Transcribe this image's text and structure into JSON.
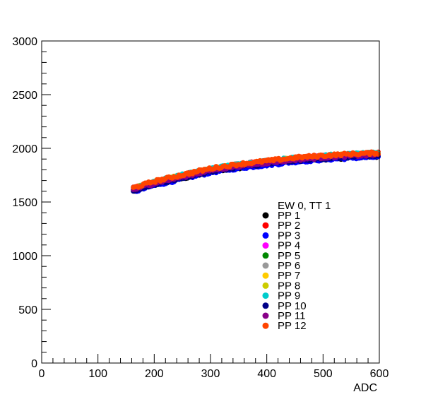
{
  "chart_data": {
    "type": "scatter",
    "title": "",
    "xlabel": "ADC",
    "ylabel": "",
    "xlim": [
      0,
      600
    ],
    "ylim": [
      0,
      3000
    ],
    "x_ticks": [
      0,
      100,
      200,
      300,
      400,
      500,
      600
    ],
    "y_ticks": [
      0,
      500,
      1000,
      1500,
      2000,
      2500,
      3000
    ],
    "grid": false,
    "legend_position": "bottom-right",
    "legend_header": "EW 0, TT 1",
    "series": [
      {
        "name": "PP 1",
        "color": "#000000",
        "offset": -20
      },
      {
        "name": "PP 2",
        "color": "#ff0000",
        "offset": 8
      },
      {
        "name": "PP 3",
        "color": "#0000ff",
        "offset": -25
      },
      {
        "name": "PP 4",
        "color": "#ff00ff",
        "offset": 5
      },
      {
        "name": "PP 5",
        "color": "#008800",
        "offset": 0
      },
      {
        "name": "PP 6",
        "color": "#999999",
        "offset": 2
      },
      {
        "name": "PP 7",
        "color": "#ffcc00",
        "offset": 4
      },
      {
        "name": "PP 8",
        "color": "#cccc00",
        "offset": 6
      },
      {
        "name": "PP 9",
        "color": "#00cccc",
        "offset": 10
      },
      {
        "name": "PP 10",
        "color": "#000088",
        "offset": -15
      },
      {
        "name": "PP 11",
        "color": "#880088",
        "offset": -5
      },
      {
        "name": "PP 12",
        "color": "#ff4400",
        "offset": 12
      }
    ],
    "curve": {
      "x_range": [
        163,
        598
      ],
      "points": [
        {
          "x": 163,
          "y": 1620
        },
        {
          "x": 200,
          "y": 1680
        },
        {
          "x": 250,
          "y": 1740
        },
        {
          "x": 300,
          "y": 1800
        },
        {
          "x": 350,
          "y": 1840
        },
        {
          "x": 400,
          "y": 1870
        },
        {
          "x": 450,
          "y": 1900
        },
        {
          "x": 500,
          "y": 1920
        },
        {
          "x": 550,
          "y": 1935
        },
        {
          "x": 598,
          "y": 1945
        }
      ]
    }
  }
}
